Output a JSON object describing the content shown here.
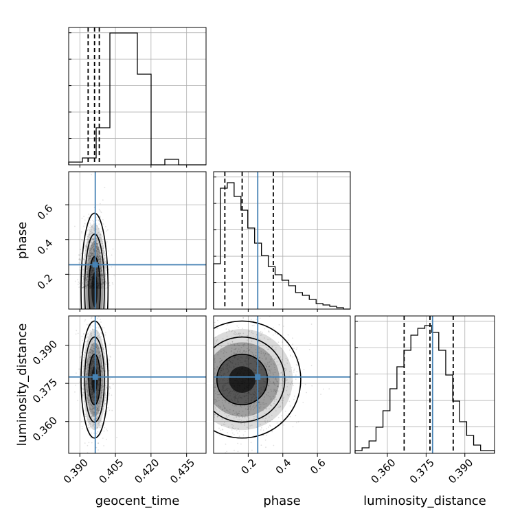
{
  "chart_data": {
    "type": "corner",
    "parameters": [
      {
        "key": "geocent_time",
        "label": "geocent_time",
        "range": [
          0.3853,
          0.4432
        ],
        "ticks": [
          "0.390",
          "0.405",
          "0.420",
          "0.435"
        ],
        "tick_values": [
          0.39,
          0.405,
          0.42,
          0.435
        ],
        "truth": 0.3965,
        "quantiles": [
          0.3935,
          0.3962,
          0.3982
        ]
      },
      {
        "key": "phase",
        "label": "phase",
        "range": [
          0.0,
          0.79
        ],
        "ticks": [
          "0.2",
          "0.4",
          "0.6"
        ],
        "tick_values": [
          0.2,
          0.4,
          0.6
        ],
        "truth": 0.255,
        "quantiles": [
          0.065,
          0.165,
          0.345
        ]
      },
      {
        "key": "luminosity_distance",
        "label": "luminosity_distance",
        "range": [
          0.3475,
          0.4015
        ],
        "ticks": [
          "0.360",
          "0.375",
          "0.390"
        ],
        "tick_values": [
          0.36,
          0.375,
          0.39
        ],
        "truth": 0.3775,
        "quantiles": [
          0.3665,
          0.3765,
          0.3855
        ]
      }
    ],
    "histograms": {
      "geocent_time": [
        0.02,
        0.05,
        0.27,
        0.96,
        0.96,
        0.66,
        0.0,
        0.04,
        0.0,
        0.0
      ],
      "phase": [
        0.33,
        0.88,
        0.92,
        0.82,
        0.72,
        0.59,
        0.48,
        0.39,
        0.31,
        0.25,
        0.21,
        0.17,
        0.12,
        0.1,
        0.07,
        0.04,
        0.03,
        0.02,
        0.01,
        0.0
      ],
      "luminosity_distance": [
        0.02,
        0.04,
        0.09,
        0.19,
        0.31,
        0.47,
        0.63,
        0.75,
        0.86,
        0.91,
        0.93,
        0.88,
        0.75,
        0.57,
        0.38,
        0.23,
        0.13,
        0.06,
        0.02,
        0.02
      ]
    },
    "grid": true,
    "truth_color": "#4682b4",
    "density_color": "#000000"
  }
}
